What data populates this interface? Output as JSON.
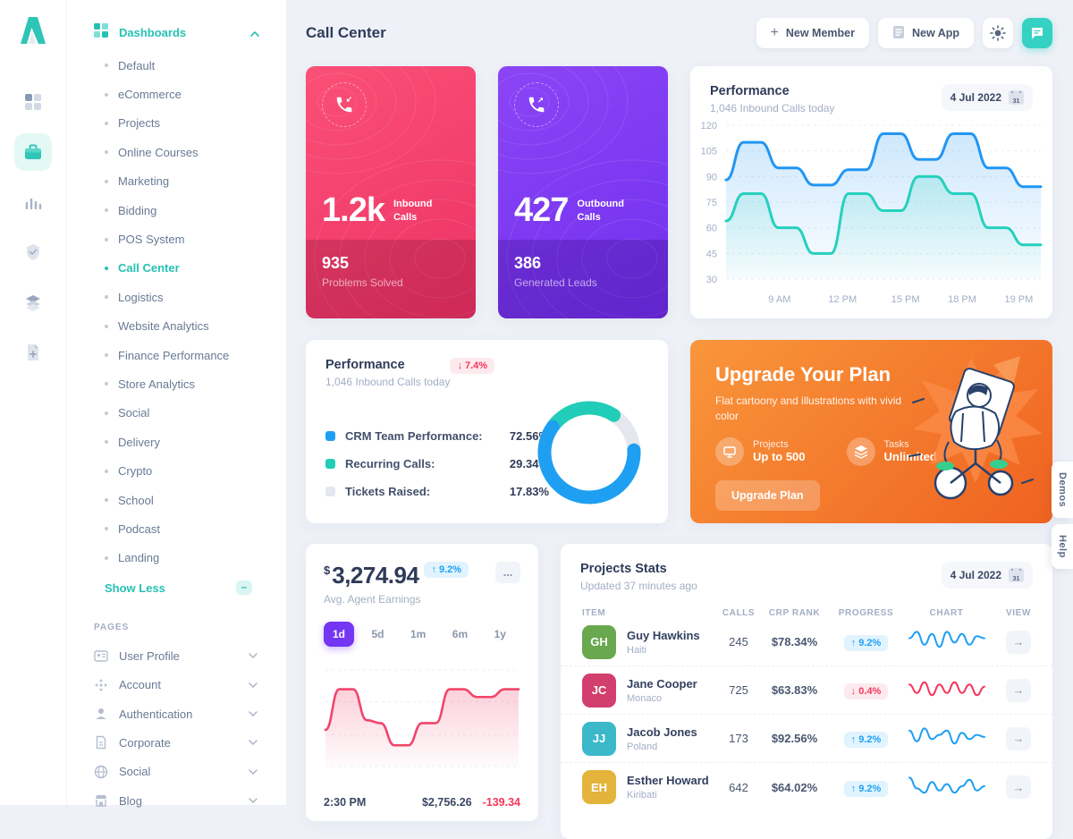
{
  "header": {
    "title": "Call Center",
    "new_member": "New Member",
    "new_app": "New App"
  },
  "colors": {
    "accent_teal": "#25c2b3",
    "chat_button": "#35d1c3",
    "blue": "#1e9ff2",
    "teal_line": "#26d0bd",
    "pink_card": "#ef3f6e",
    "purple_card": "#7b3df0",
    "orange_card": "#f3701f",
    "earnings_line": "#f2456b",
    "active_tab_purple": "#7436f3",
    "badge_red": "#f5365c",
    "donut_gray": "#e4e8ee"
  },
  "icon_rail": {
    "items": [
      {
        "icon": "dashboard-grid-icon"
      },
      {
        "icon": "briefcase-icon",
        "active": true
      },
      {
        "icon": "bar-chart-icon"
      },
      {
        "icon": "shield-check-icon"
      },
      {
        "icon": "layers-icon"
      },
      {
        "icon": "file-plus-icon"
      }
    ]
  },
  "sidebar": {
    "section_title": "Dashboards",
    "items": [
      {
        "label": "Default"
      },
      {
        "label": "eCommerce"
      },
      {
        "label": "Projects"
      },
      {
        "label": "Online Courses"
      },
      {
        "label": "Marketing"
      },
      {
        "label": "Bidding"
      },
      {
        "label": "POS System"
      },
      {
        "label": "Call Center",
        "active": true
      },
      {
        "label": "Logistics"
      },
      {
        "label": "Website Analytics"
      },
      {
        "label": "Finance Performance"
      },
      {
        "label": "Store Analytics"
      },
      {
        "label": "Social"
      },
      {
        "label": "Delivery"
      },
      {
        "label": "Crypto"
      },
      {
        "label": "School"
      },
      {
        "label": "Podcast"
      },
      {
        "label": "Landing"
      }
    ],
    "show_less": "Show Less",
    "pages_label": "PAGES",
    "pages": [
      {
        "label": "User Profile",
        "icon": "id-card-icon"
      },
      {
        "label": "Account",
        "icon": "move-icon"
      },
      {
        "label": "Authentication",
        "icon": "person-icon"
      },
      {
        "label": "Corporate",
        "icon": "document-icon"
      },
      {
        "label": "Social",
        "icon": "globe-icon"
      },
      {
        "label": "Blog",
        "icon": "storefront-icon"
      }
    ]
  },
  "stat_cards": {
    "inbound": {
      "value": "1.2k",
      "label": "Inbound Calls",
      "band_value": "935",
      "band_label": "Problems Solved",
      "icon": "phone-incoming-icon",
      "arrow": "↙"
    },
    "outbound": {
      "value": "427",
      "label": "Outbound Calls",
      "band_value": "386",
      "band_label": "Generated Leads",
      "icon": "phone-outgoing-icon",
      "arrow": "↗"
    }
  },
  "performance_line": {
    "title": "Performance",
    "subtitle": "1,046 Inbound Calls today",
    "date": "4 Jul 2022",
    "calendar_day": "31"
  },
  "performance_donut": {
    "title": "Performance",
    "subtitle": "1,046 Inbound Calls today",
    "badge": {
      "direction": "down",
      "arrow": "↓",
      "text": "7.4%"
    },
    "legend": [
      {
        "label": "CRM Team Performance:",
        "value": "72.56%",
        "color": "#1e9ff2"
      },
      {
        "label": "Recurring Calls:",
        "value": "29.34%",
        "color": "#21cdb8"
      },
      {
        "label": "Tickets Raised:",
        "value": "17.83%",
        "color": "#e4e8ee"
      }
    ]
  },
  "upgrade": {
    "title": "Upgrade Your Plan",
    "subtitle": "Flat cartoony and illustrations with vivid color",
    "features": [
      {
        "label": "Projects",
        "value": "Up to 500",
        "icon": "monitor-icon"
      },
      {
        "label": "Tasks",
        "value": "Unlimited",
        "icon": "layers-icon"
      }
    ],
    "button": "Upgrade Plan"
  },
  "earnings": {
    "currency": "$",
    "value": "3,274.94",
    "badge": {
      "direction": "up",
      "arrow": "↑",
      "text": "9.2%"
    },
    "subtitle": "Avg. Agent Earnings",
    "menu": "...",
    "tabs": [
      "1d",
      "5d",
      "1m",
      "6m",
      "1y"
    ],
    "active_tab": "1d",
    "footer": {
      "time": "2:30 PM",
      "amount": "$2,756.26",
      "delta": "-139.34"
    }
  },
  "projects": {
    "title": "Projects Stats",
    "subtitle": "Updated 37 minutes ago",
    "date": "4 Jul 2022",
    "calendar_day": "31",
    "columns": [
      "ITEM",
      "CALLS",
      "CRP RANK",
      "PROGRESS",
      "CHART",
      "VIEW"
    ],
    "rows": [
      {
        "name": "Guy Hawkins",
        "country": "Haiti",
        "initials": "GH",
        "avatar_color": "#6aa84f",
        "calls": "245",
        "crp_rank": "$78.34%",
        "progress": {
          "direction": "up",
          "arrow": "↑",
          "text": "9.2%"
        },
        "view": "→"
      },
      {
        "name": "Jane Cooper",
        "country": "Monaco",
        "initials": "JC",
        "avatar_color": "#d23f6e",
        "calls": "725",
        "crp_rank": "$63.83%",
        "progress": {
          "direction": "down",
          "arrow": "↓",
          "text": "0.4%"
        },
        "view": "→"
      },
      {
        "name": "Jacob Jones",
        "country": "Poland",
        "initials": "JJ",
        "avatar_color": "#3bb8c9",
        "calls": "173",
        "crp_rank": "$92.56%",
        "progress": {
          "direction": "up",
          "arrow": "↑",
          "text": "9.2%"
        },
        "view": "→"
      },
      {
        "name": "Esther Howard",
        "country": "Kiribati",
        "initials": "EH",
        "avatar_color": "#e4b33c",
        "calls": "642",
        "crp_rank": "$64.02%",
        "progress": {
          "direction": "up",
          "arrow": "↑",
          "text": "9.2%"
        },
        "view": "→"
      }
    ]
  },
  "side_tabs": {
    "demos": "Demos",
    "help": "Help"
  },
  "chart_data": [
    {
      "id": "performance-line",
      "type": "line",
      "title": "Performance",
      "subtitle": "1,046 Inbound Calls today",
      "x_labels": [
        "9 AM",
        "12 PM",
        "15 PM",
        "18 PM",
        "19 PM"
      ],
      "y_ticks": [
        120,
        105,
        90,
        75,
        60,
        45,
        30
      ],
      "ylim": [
        30,
        120
      ],
      "grid": "dashed-horizontal",
      "legend_position": "none",
      "series": [
        {
          "name": "Inbound Calls",
          "color": "#2196f3",
          "values": [
            88,
            110,
            110,
            95,
            95,
            85,
            85,
            94,
            94,
            115,
            115,
            100,
            100,
            115,
            115,
            95,
            95,
            84,
            84
          ]
        },
        {
          "name": "Recurring Calls",
          "color": "#26d0bd",
          "values": [
            64,
            80,
            80,
            60,
            60,
            45,
            45,
            80,
            80,
            70,
            70,
            90,
            90,
            80,
            80,
            60,
            60,
            50,
            50
          ]
        }
      ]
    },
    {
      "id": "team-performance-donut",
      "type": "pie",
      "segments": [
        {
          "label": "CRM Team Performance",
          "value": 72.56,
          "color": "#1e9ff2"
        },
        {
          "label": "Recurring Calls",
          "value": 29.34,
          "color": "#21cdb8"
        },
        {
          "label": "Tickets Raised",
          "value": 17.83,
          "color": "#e4e8ee"
        }
      ],
      "note": "donut with rounded segment caps"
    },
    {
      "id": "agent-earnings",
      "type": "area",
      "color": "#f2456b",
      "ylim": [
        0,
        100
      ],
      "range": "1d",
      "values": [
        38,
        80,
        80,
        48,
        45,
        22,
        22,
        45,
        45,
        80,
        80,
        72,
        72,
        80,
        80
      ]
    },
    {
      "id": "project-sparklines",
      "type": "line",
      "rows": [
        {
          "name": "Guy Hawkins",
          "color": "#1e9ff2",
          "values": [
            6,
            9,
            3,
            8,
            2,
            9,
            4,
            8,
            3,
            7,
            6
          ]
        },
        {
          "name": "Jane Cooper",
          "color": "#f5365c",
          "values": [
            7,
            3,
            8,
            2,
            7,
            3,
            8,
            3,
            7,
            2,
            6
          ]
        },
        {
          "name": "Jacob Jones",
          "color": "#1e9ff2",
          "values": [
            8,
            3,
            9,
            4,
            6,
            8,
            2,
            7,
            4,
            6,
            5
          ]
        },
        {
          "name": "Esther Howard",
          "color": "#1e9ff2",
          "values": [
            9,
            4,
            2,
            7,
            3,
            6,
            2,
            5,
            8,
            3,
            5
          ]
        }
      ]
    }
  ]
}
